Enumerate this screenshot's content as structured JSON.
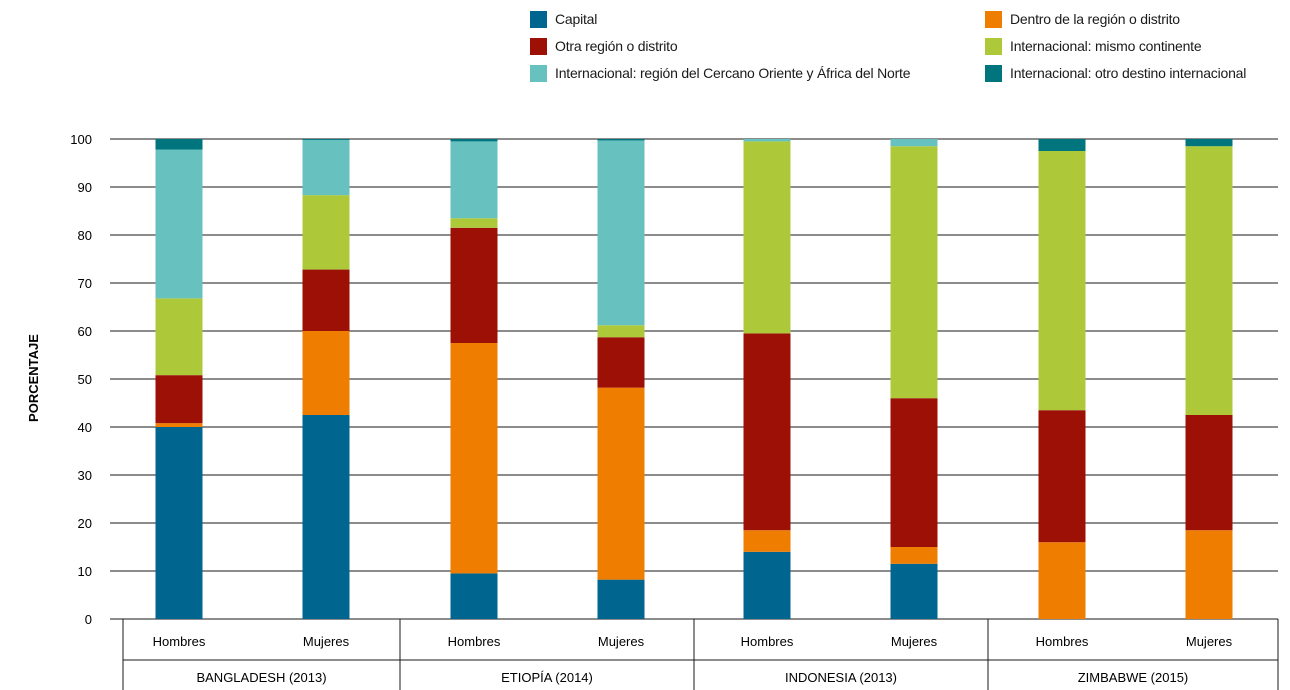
{
  "chart_data": {
    "type": "bar",
    "stacked": true,
    "ylabel": "PORCENTAJE",
    "ylim": [
      0,
      100
    ],
    "yticks": [
      0,
      10,
      20,
      30,
      40,
      50,
      60,
      70,
      80,
      90,
      100
    ],
    "grid": true,
    "legend_position": "top-right",
    "groups": [
      "BANGLADESH (2013)",
      "ETIOPÍA (2014)",
      "INDONESIA (2013)",
      "ZIMBABWE (2015)"
    ],
    "categories": [
      "Hombres",
      "Mujeres",
      "Hombres",
      "Mujeres",
      "Hombres",
      "Mujeres",
      "Hombres",
      "Mujeres"
    ],
    "series": [
      {
        "name": "Capital",
        "color": "#00658f",
        "values": [
          40,
          42.5,
          9.5,
          8.2,
          14,
          11.5,
          0,
          0
        ]
      },
      {
        "name": "Dentro de la región o distrito",
        "color": "#ef7d00",
        "values": [
          0.8,
          17.5,
          48,
          40,
          4.5,
          3.5,
          16,
          18.5
        ]
      },
      {
        "name": "Otra región o distrito",
        "color": "#9c1006",
        "values": [
          10,
          12.8,
          24,
          10.5,
          41,
          31,
          27.5,
          24
        ]
      },
      {
        "name": "Internacional: mismo continente",
        "color": "#adc93a",
        "values": [
          16,
          15.5,
          2,
          2.5,
          40,
          52.5,
          54,
          56
        ]
      },
      {
        "name": "Internacional: región del Cercano Oriente y África del Norte",
        "color": "#67c1bf",
        "values": [
          31,
          11.5,
          16,
          38.5,
          0.5,
          1.5,
          0,
          0
        ]
      },
      {
        "name": "Internacional: otro destino internacional",
        "color": "#00757e",
        "values": [
          2.2,
          0.2,
          0.5,
          0.3,
          0,
          0,
          2.5,
          1.5
        ]
      }
    ]
  }
}
